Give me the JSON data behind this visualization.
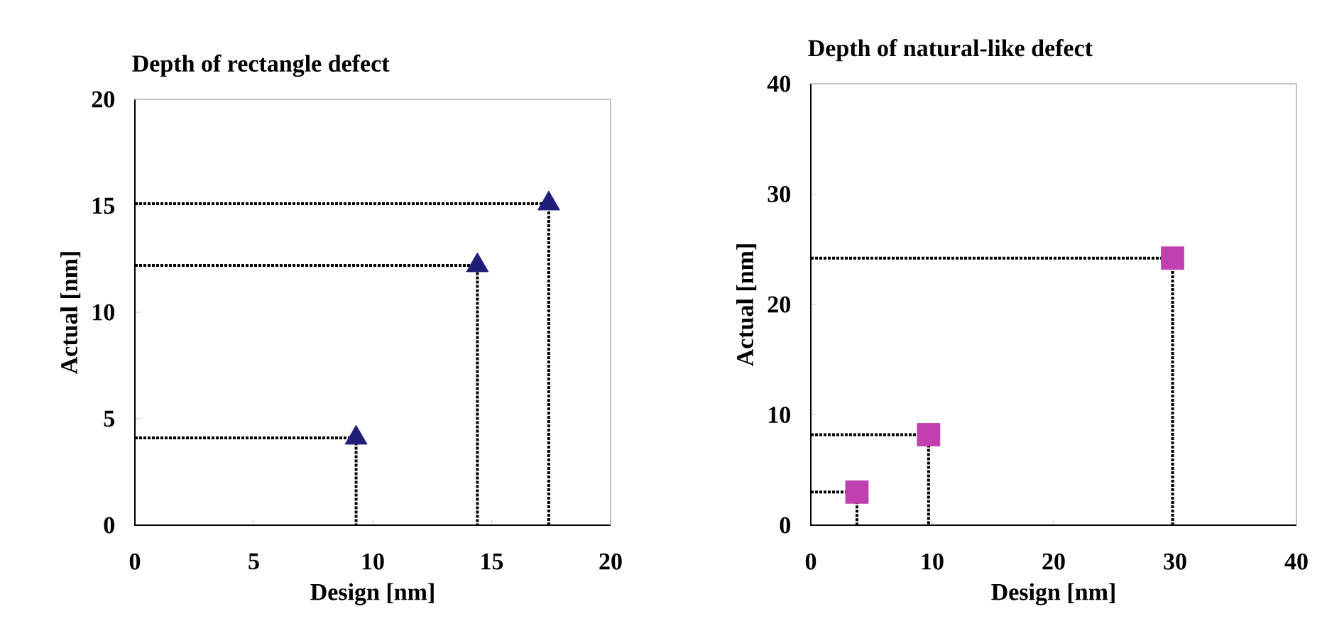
{
  "chart_data": [
    {
      "type": "scatter",
      "title": "Depth of rectangle defect",
      "xlabel": "Design [nm]",
      "ylabel": "Actual [nm]",
      "xlim": [
        0,
        20
      ],
      "xticks": [
        0,
        5,
        10,
        15,
        20
      ],
      "ylim": [
        0,
        20
      ],
      "yticks": [
        0,
        5,
        10,
        15,
        20
      ],
      "series": [
        {
          "type": "scatter",
          "marker": "triangle",
          "color": "#1f1f7a",
          "x": [
            9.3,
            14.4,
            17.4
          ],
          "values": [
            4.1,
            12.2,
            15.1
          ]
        },
        {
          "type": "line",
          "line_style": "dotted",
          "marker": "none",
          "color": "#000000",
          "x": [
            0,
            9.3,
            9.3
          ],
          "values": [
            4.1,
            4.1,
            0
          ]
        },
        {
          "type": "line",
          "line_style": "dotted",
          "marker": "none",
          "color": "#000000",
          "x": [
            0,
            14.4,
            14.4
          ],
          "values": [
            12.2,
            12.2,
            0
          ]
        },
        {
          "type": "line",
          "line_style": "dotted",
          "marker": "none",
          "color": "#000000",
          "x": [
            0,
            17.4,
            17.4
          ],
          "values": [
            15.1,
            15.1,
            0
          ]
        }
      ]
    },
    {
      "type": "scatter",
      "title": "Depth of natural-like defect",
      "xlabel": "Design [nm]",
      "ylabel": "Actual [nm]",
      "xlim": [
        0,
        40
      ],
      "xticks": [
        0,
        10,
        20,
        30,
        40
      ],
      "ylim": [
        0,
        40
      ],
      "yticks": [
        0,
        10,
        20,
        30,
        40
      ],
      "series": [
        {
          "type": "scatter",
          "marker": "square",
          "color": "#c040b0",
          "x": [
            3.8,
            9.7,
            29.8
          ],
          "values": [
            3.0,
            8.2,
            24.2
          ]
        },
        {
          "type": "line",
          "line_style": "dotted",
          "marker": "none",
          "color": "#000000",
          "x": [
            0,
            3.8,
            3.8
          ],
          "values": [
            3.0,
            3.0,
            0
          ]
        },
        {
          "type": "line",
          "line_style": "dotted",
          "marker": "none",
          "color": "#000000",
          "x": [
            0,
            9.7,
            9.7
          ],
          "values": [
            8.2,
            8.2,
            0
          ]
        },
        {
          "type": "line",
          "line_style": "dotted",
          "marker": "none",
          "color": "#000000",
          "x": [
            0,
            29.8,
            29.8
          ],
          "values": [
            24.2,
            24.2,
            0
          ]
        }
      ]
    }
  ]
}
